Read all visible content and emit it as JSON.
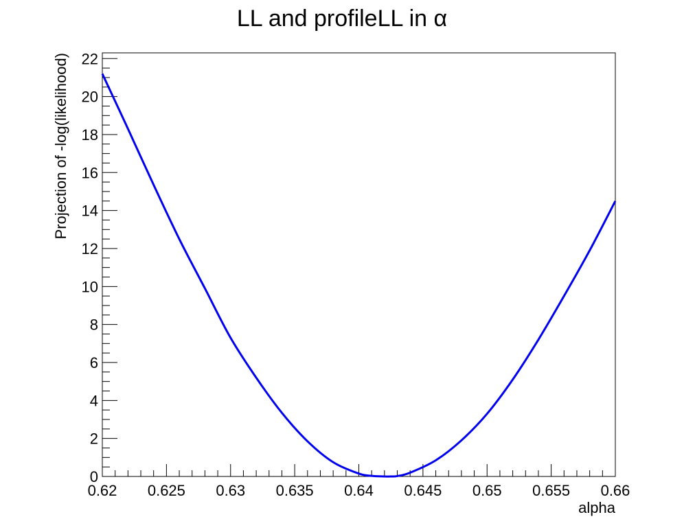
{
  "chart_data": {
    "type": "line",
    "title": "LL and profileLL in α",
    "xlabel": "alpha",
    "ylabel": "Projection of -log(likelihood)",
    "xlim": [
      0.62,
      0.66
    ],
    "ylim": [
      0,
      22.3
    ],
    "x_ticks": [
      "0.62",
      "0.625",
      "0.63",
      "0.635",
      "0.64",
      "0.645",
      "0.65",
      "0.655",
      "0.66"
    ],
    "y_ticks": [
      "0",
      "2",
      "4",
      "6",
      "8",
      "10",
      "12",
      "14",
      "16",
      "18",
      "20",
      "22"
    ],
    "grid": false,
    "legend": "none",
    "series": [
      {
        "color": "#0000ee",
        "x": [
          0.62,
          0.622,
          0.624,
          0.626,
          0.628,
          0.63,
          0.632,
          0.634,
          0.636,
          0.638,
          0.64,
          0.641,
          0.642,
          0.6425,
          0.643,
          0.644,
          0.646,
          0.648,
          0.65,
          0.652,
          0.654,
          0.656,
          0.658,
          0.66
        ],
        "y": [
          21.2,
          18.3,
          15.35,
          12.5,
          9.9,
          7.3,
          5.2,
          3.35,
          1.85,
          0.75,
          0.15,
          0.03,
          0.0,
          0.0,
          0.02,
          0.2,
          0.85,
          1.9,
          3.3,
          5.1,
          7.2,
          9.5,
          11.9,
          14.5
        ]
      }
    ]
  }
}
